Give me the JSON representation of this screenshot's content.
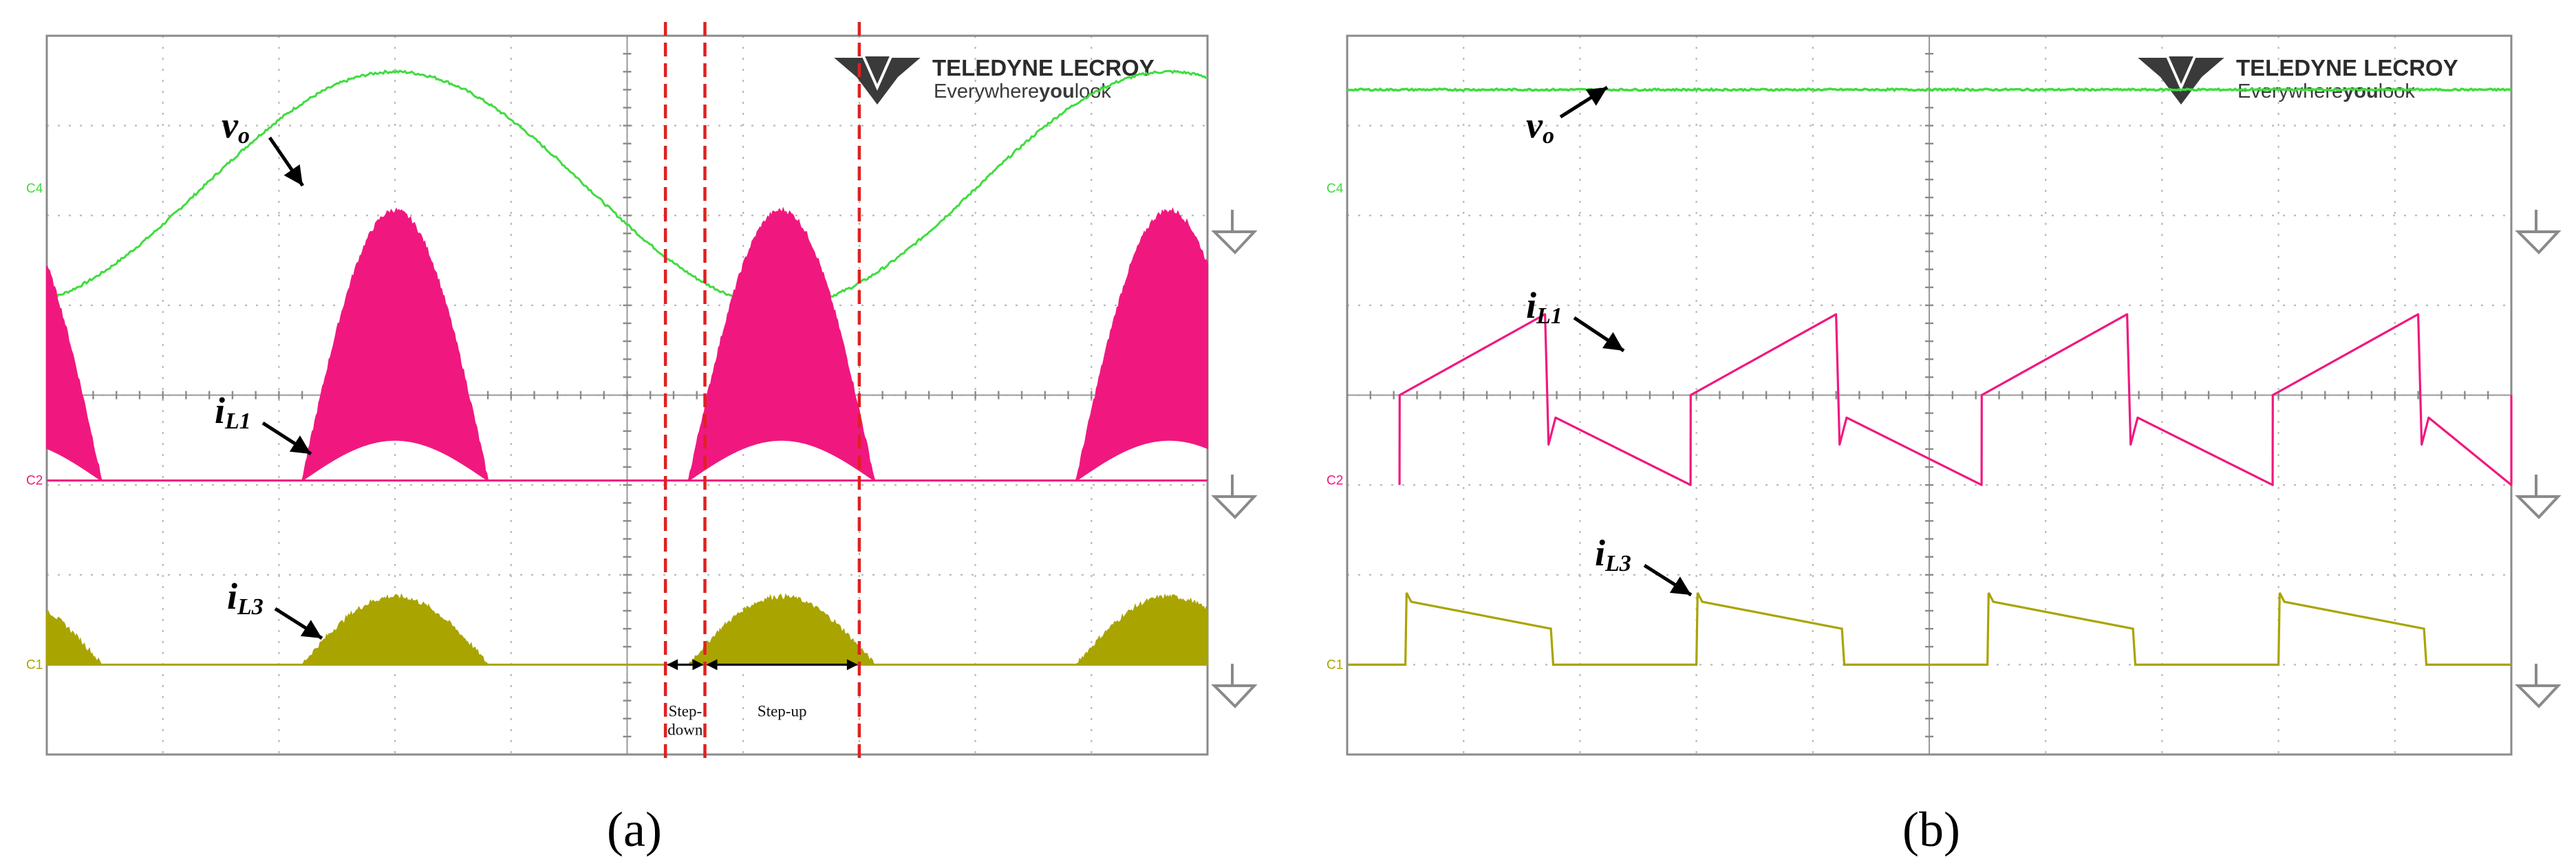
{
  "figure": {
    "panel_labels": [
      "(a)",
      "(b)"
    ],
    "logo": {
      "brand": "TELEDYNE LECROY",
      "tagline_pre": "Everywhere",
      "tagline_bold": "you",
      "tagline_post": "look"
    },
    "channel_labels": [
      "C4",
      "C2",
      "C1"
    ],
    "colors": {
      "vo": "#3fdc3f",
      "iL1": "#f0187f",
      "iL3": "#a9a400",
      "markers": "#e02020",
      "grid": "#b9b9b9"
    }
  },
  "chart_data": [
    {
      "type": "line",
      "panel": "(a)",
      "description_of_axes": "oscilloscope, 10 x 8 divisions",
      "xlim": [
        0,
        10
      ],
      "ylim": [
        -4,
        4
      ],
      "grid": true,
      "series": [
        {
          "name": "vo",
          "label_sym": "v",
          "label_sub": "o",
          "channel": "C4",
          "shape": "sine",
          "offset": 2.3,
          "amplitude": 1.3,
          "period": 6.67,
          "peak_at": 3.0
        },
        {
          "name": "iL1",
          "label_sym": "i",
          "label_sub": "L1",
          "channel": "C2",
          "shape": "envelope",
          "baseline": -0.95,
          "upper_peak": 2.05,
          "lower_peak": -0.5,
          "pulse_centers": [
            -0.33,
            3.0,
            6.33,
            9.67
          ],
          "half_width": 0.8
        },
        {
          "name": "iL3",
          "label_sym": "i",
          "label_sub": "L3",
          "channel": "C1",
          "shape": "envelope",
          "baseline": -3.0,
          "upper_peak": -2.25,
          "pulse_centers": [
            -0.33,
            3.0,
            6.33,
            9.67
          ],
          "half_width": 0.8
        }
      ],
      "markers": [
        5.33,
        5.67,
        7.0
      ],
      "regions": [
        {
          "from": 5.33,
          "to": 5.67,
          "lines": [
            "Step-",
            "down"
          ]
        },
        {
          "from": 5.67,
          "to": 7.0,
          "lines": [
            "Step-up"
          ]
        }
      ]
    },
    {
      "type": "line",
      "panel": "(b)",
      "description_of_axes": "oscilloscope, 10 x 8 divisions",
      "xlim": [
        0,
        10
      ],
      "ylim": [
        -4,
        4
      ],
      "grid": true,
      "series": [
        {
          "name": "vo",
          "label_sym": "v",
          "label_sub": "o",
          "channel": "C4",
          "shape": "dc",
          "level": 3.4
        },
        {
          "name": "iL1",
          "label_sym": "i",
          "label_sub": "L1",
          "channel": "C2",
          "shape": "sawtooth",
          "period": 2.5,
          "start_phase": 0.45,
          "on_start": 0.0,
          "on_end": 0.9,
          "off_start": -0.25,
          "off_end": -1.0,
          "on_fraction": 0.5
        },
        {
          "name": "iL3",
          "label_sym": "i",
          "label_sub": "L3",
          "channel": "C1",
          "shape": "pulse",
          "period": 2.5,
          "rise_at": 0.5,
          "fall_at": 1.75,
          "baseline": -3.0,
          "high_start": -2.3,
          "high_end": -2.6
        }
      ]
    }
  ]
}
